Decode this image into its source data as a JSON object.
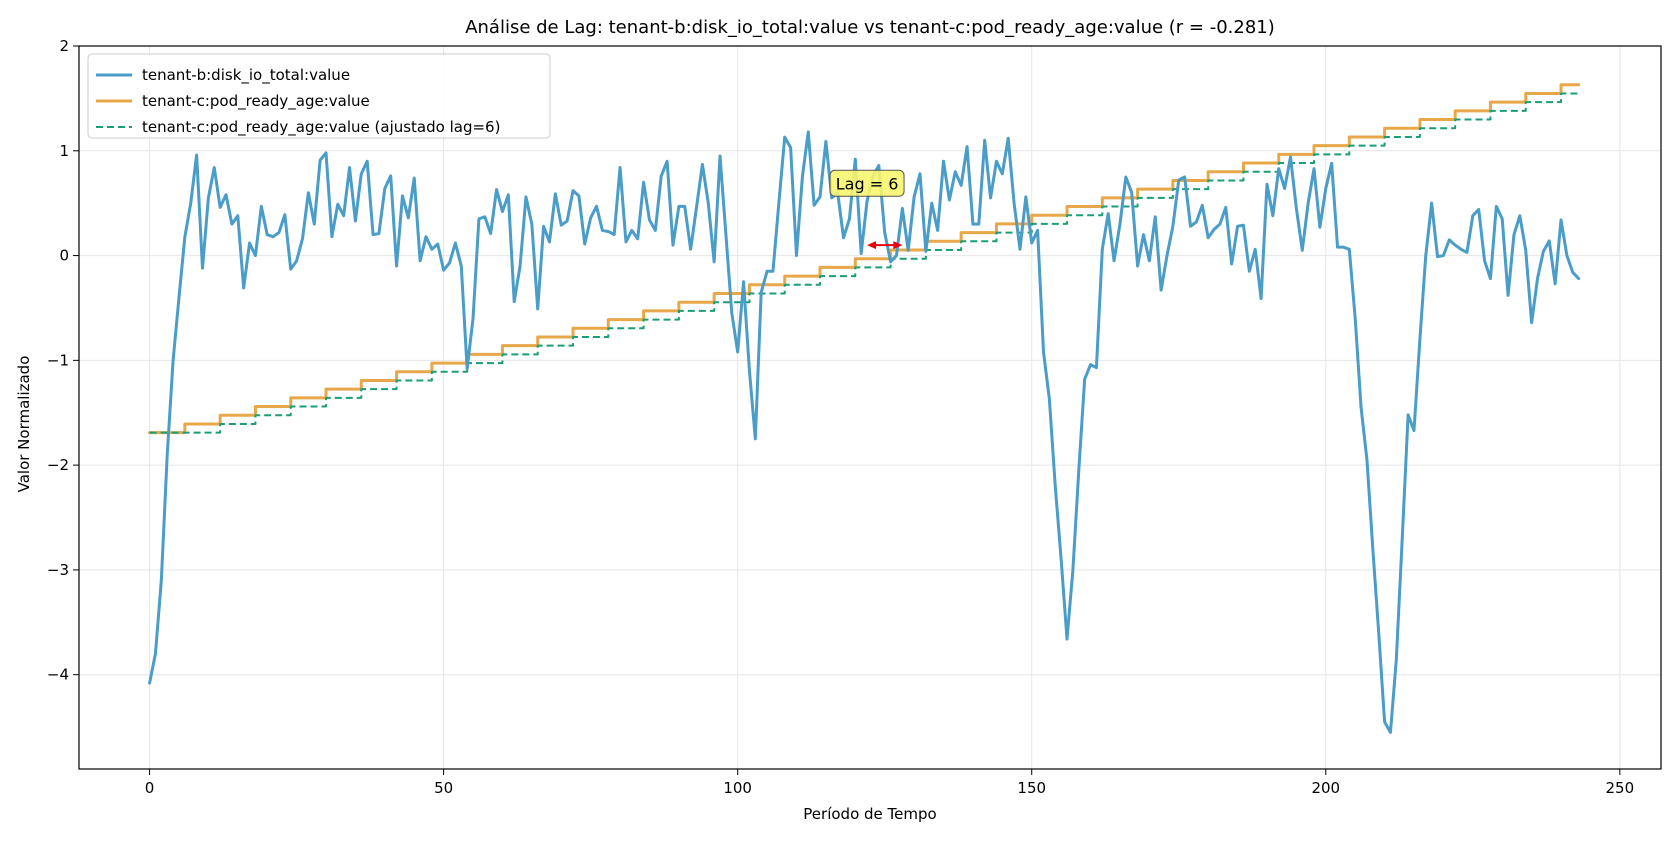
{
  "chart_data": {
    "type": "line",
    "title": "Análise de Lag: tenant-b:disk_io_total:value vs tenant-c:pod_ready_age:value (r = -0.281)",
    "xlabel": "Período de Tempo",
    "ylabel": "Valor Normalizado",
    "xlim": [
      -12,
      257
    ],
    "ylim": [
      -4.9,
      2.0
    ],
    "xticks": [
      0,
      50,
      100,
      150,
      200,
      250
    ],
    "yticks": [
      2,
      1,
      0,
      -1,
      -2,
      -3,
      -4
    ],
    "ytick_labels": [
      "2",
      "1",
      "0",
      "−1",
      "−2",
      "−3",
      "−4"
    ],
    "grid": true,
    "legend_position": "upper-left",
    "series": [
      {
        "name": "tenant-b:disk_io_total:value",
        "color": "#4a9cc9",
        "style": "solid",
        "points": [
          [
            0,
            -4.08
          ],
          [
            1,
            -3.8
          ],
          [
            2,
            -3.1
          ],
          [
            3,
            -1.9
          ],
          [
            4,
            -1.0
          ],
          [
            5,
            -0.4
          ],
          [
            6,
            0.18
          ],
          [
            7,
            0.5
          ],
          [
            8,
            0.96
          ],
          [
            9,
            -0.12
          ],
          [
            10,
            0.55
          ],
          [
            11,
            0.84
          ],
          [
            12,
            0.46
          ],
          [
            13,
            0.58
          ],
          [
            14,
            0.3
          ],
          [
            15,
            0.38
          ],
          [
            16,
            -0.31
          ],
          [
            17,
            0.12
          ],
          [
            18,
            0.0
          ],
          [
            19,
            0.47
          ],
          [
            20,
            0.2
          ],
          [
            21,
            0.18
          ],
          [
            22,
            0.22
          ],
          [
            23,
            0.39
          ],
          [
            24,
            -0.13
          ],
          [
            25,
            -0.05
          ],
          [
            26,
            0.16
          ],
          [
            27,
            0.6
          ],
          [
            28,
            0.3
          ],
          [
            29,
            0.91
          ],
          [
            30,
            0.98
          ],
          [
            31,
            0.18
          ],
          [
            32,
            0.49
          ],
          [
            33,
            0.38
          ],
          [
            34,
            0.84
          ],
          [
            35,
            0.33
          ],
          [
            36,
            0.78
          ],
          [
            37,
            0.9
          ],
          [
            38,
            0.2
          ],
          [
            39,
            0.21
          ],
          [
            40,
            0.64
          ],
          [
            41,
            0.76
          ],
          [
            42,
            -0.1
          ],
          [
            43,
            0.57
          ],
          [
            44,
            0.36
          ],
          [
            45,
            0.74
          ],
          [
            46,
            -0.05
          ],
          [
            47,
            0.18
          ],
          [
            48,
            0.06
          ],
          [
            49,
            0.11
          ],
          [
            50,
            -0.14
          ],
          [
            51,
            -0.07
          ],
          [
            52,
            0.12
          ],
          [
            53,
            -0.1
          ],
          [
            54,
            -1.08
          ],
          [
            55,
            -0.6
          ],
          [
            56,
            0.35
          ],
          [
            57,
            0.37
          ],
          [
            58,
            0.21
          ],
          [
            59,
            0.63
          ],
          [
            60,
            0.42
          ],
          [
            61,
            0.58
          ],
          [
            62,
            -0.44
          ],
          [
            63,
            -0.1
          ],
          [
            64,
            0.56
          ],
          [
            65,
            0.3
          ],
          [
            66,
            -0.51
          ],
          [
            67,
            0.28
          ],
          [
            68,
            0.13
          ],
          [
            69,
            0.59
          ],
          [
            70,
            0.29
          ],
          [
            71,
            0.33
          ],
          [
            72,
            0.62
          ],
          [
            73,
            0.57
          ],
          [
            74,
            0.11
          ],
          [
            75,
            0.36
          ],
          [
            76,
            0.47
          ],
          [
            77,
            0.24
          ],
          [
            78,
            0.23
          ],
          [
            79,
            0.2
          ],
          [
            80,
            0.84
          ],
          [
            81,
            0.13
          ],
          [
            82,
            0.24
          ],
          [
            83,
            0.16
          ],
          [
            84,
            0.7
          ],
          [
            85,
            0.34
          ],
          [
            86,
            0.24
          ],
          [
            87,
            0.76
          ],
          [
            88,
            0.9
          ],
          [
            89,
            0.1
          ],
          [
            90,
            0.47
          ],
          [
            91,
            0.47
          ],
          [
            92,
            0.06
          ],
          [
            93,
            0.46
          ],
          [
            94,
            0.87
          ],
          [
            95,
            0.5
          ],
          [
            96,
            -0.06
          ],
          [
            97,
            0.95
          ],
          [
            98,
            0.2
          ],
          [
            99,
            -0.55
          ],
          [
            100,
            -0.92
          ],
          [
            101,
            -0.25
          ],
          [
            102,
            -1.1
          ],
          [
            103,
            -1.75
          ],
          [
            104,
            -0.35
          ],
          [
            105,
            -0.15
          ],
          [
            106,
            -0.15
          ],
          [
            107,
            0.5
          ],
          [
            108,
            1.13
          ],
          [
            109,
            1.03
          ],
          [
            110,
            0.0
          ],
          [
            111,
            0.75
          ],
          [
            112,
            1.18
          ],
          [
            113,
            0.48
          ],
          [
            114,
            0.56
          ],
          [
            115,
            1.09
          ],
          [
            116,
            0.55
          ],
          [
            117,
            0.6
          ],
          [
            118,
            0.17
          ],
          [
            119,
            0.35
          ],
          [
            120,
            0.92
          ],
          [
            121,
            0.02
          ],
          [
            122,
            0.52
          ],
          [
            123,
            0.76
          ],
          [
            124,
            0.86
          ],
          [
            125,
            0.22
          ],
          [
            126,
            -0.06
          ],
          [
            127,
            0.0
          ],
          [
            128,
            0.45
          ],
          [
            129,
            0.05
          ],
          [
            130,
            0.56
          ],
          [
            131,
            0.78
          ],
          [
            132,
            0.04
          ],
          [
            133,
            0.5
          ],
          [
            134,
            0.24
          ],
          [
            135,
            0.9
          ],
          [
            136,
            0.53
          ],
          [
            137,
            0.8
          ],
          [
            138,
            0.67
          ],
          [
            139,
            1.04
          ],
          [
            140,
            0.3
          ],
          [
            141,
            0.3
          ],
          [
            142,
            1.1
          ],
          [
            143,
            0.55
          ],
          [
            144,
            0.9
          ],
          [
            145,
            0.78
          ],
          [
            146,
            1.12
          ],
          [
            147,
            0.5
          ],
          [
            148,
            0.06
          ],
          [
            149,
            0.56
          ],
          [
            150,
            0.12
          ],
          [
            151,
            0.24
          ],
          [
            152,
            -0.92
          ],
          [
            153,
            -1.37
          ],
          [
            154,
            -2.2
          ],
          [
            155,
            -2.9
          ],
          [
            156,
            -3.66
          ],
          [
            157,
            -3.0
          ],
          [
            158,
            -2.05
          ],
          [
            159,
            -1.18
          ],
          [
            160,
            -1.04
          ],
          [
            161,
            -1.07
          ],
          [
            162,
            0.06
          ],
          [
            163,
            0.4
          ],
          [
            164,
            -0.05
          ],
          [
            165,
            0.3
          ],
          [
            166,
            0.75
          ],
          [
            167,
            0.6
          ],
          [
            168,
            -0.1
          ],
          [
            169,
            0.2
          ],
          [
            170,
            -0.05
          ],
          [
            171,
            0.37
          ],
          [
            172,
            -0.33
          ],
          [
            173,
            0.0
          ],
          [
            174,
            0.28
          ],
          [
            175,
            0.72
          ],
          [
            176,
            0.75
          ],
          [
            177,
            0.28
          ],
          [
            178,
            0.32
          ],
          [
            179,
            0.48
          ],
          [
            180,
            0.17
          ],
          [
            181,
            0.25
          ],
          [
            182,
            0.3
          ],
          [
            183,
            0.46
          ],
          [
            184,
            -0.08
          ],
          [
            185,
            0.28
          ],
          [
            186,
            0.29
          ],
          [
            187,
            -0.15
          ],
          [
            188,
            0.06
          ],
          [
            189,
            -0.41
          ],
          [
            190,
            0.68
          ],
          [
            191,
            0.38
          ],
          [
            192,
            0.83
          ],
          [
            193,
            0.64
          ],
          [
            194,
            0.94
          ],
          [
            195,
            0.45
          ],
          [
            196,
            0.05
          ],
          [
            197,
            0.5
          ],
          [
            198,
            0.83
          ],
          [
            199,
            0.27
          ],
          [
            200,
            0.64
          ],
          [
            201,
            0.88
          ],
          [
            202,
            0.08
          ],
          [
            203,
            0.08
          ],
          [
            204,
            0.06
          ],
          [
            205,
            -0.6
          ],
          [
            206,
            -1.45
          ],
          [
            207,
            -1.95
          ],
          [
            208,
            -2.8
          ],
          [
            209,
            -3.6
          ],
          [
            210,
            -4.45
          ],
          [
            211,
            -4.55
          ],
          [
            212,
            -3.85
          ],
          [
            213,
            -2.7
          ],
          [
            214,
            -1.52
          ],
          [
            215,
            -1.67
          ],
          [
            216,
            -0.8
          ],
          [
            217,
            0.0
          ],
          [
            218,
            0.5
          ],
          [
            219,
            -0.01
          ],
          [
            220,
            0.0
          ],
          [
            221,
            0.15
          ],
          [
            222,
            0.1
          ],
          [
            223,
            0.06
          ],
          [
            224,
            0.03
          ],
          [
            225,
            0.38
          ],
          [
            226,
            0.44
          ],
          [
            227,
            -0.05
          ],
          [
            228,
            -0.22
          ],
          [
            229,
            0.47
          ],
          [
            230,
            0.35
          ],
          [
            231,
            -0.38
          ],
          [
            232,
            0.2
          ],
          [
            233,
            0.38
          ],
          [
            234,
            0.05
          ],
          [
            235,
            -0.64
          ],
          [
            236,
            -0.22
          ],
          [
            237,
            0.04
          ],
          [
            238,
            0.14
          ],
          [
            239,
            -0.27
          ],
          [
            240,
            0.34
          ],
          [
            241,
            0.0
          ],
          [
            242,
            -0.16
          ],
          [
            243,
            -0.22
          ]
        ]
      },
      {
        "name": "tenant-c:pod_ready_age:value",
        "color": "#e8a84a",
        "style": "solid",
        "step": {
          "x_start": 0,
          "x_end": 243,
          "period": 6,
          "first_change": 6,
          "y_start": -1.69,
          "y_step": 0.083
        }
      },
      {
        "name": "tenant-c:pod_ready_age:value (ajustado lag=6)",
        "color": "#1a9e77",
        "style": "dashed",
        "step": {
          "x_start": 0,
          "x_end": 243,
          "period": 6,
          "first_change": 12,
          "y_start": -1.69,
          "y_step": 0.083
        }
      }
    ],
    "annotation": {
      "text": "Lag = 6",
      "x": 122,
      "y": 0.69,
      "arrow": {
        "x1": 122,
        "x2": 128,
        "y": 0.1,
        "color": "#e8000b"
      },
      "box_fill": "#f7f56e"
    }
  }
}
